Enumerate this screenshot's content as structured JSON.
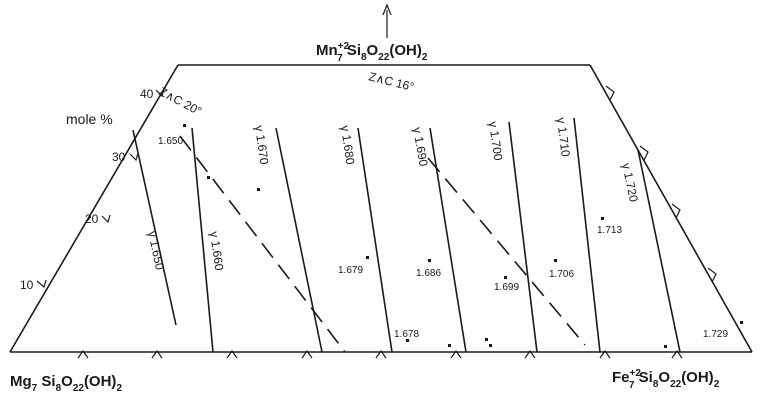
{
  "corners": {
    "top": {
      "base": "Mn",
      "sub1": "7",
      "sup1": "+2",
      "mid": " Si",
      "sub2": "8",
      "mid2": "O",
      "sub3": "22",
      "tail": "(OH)",
      "sub4": "2"
    },
    "left": {
      "base": "Mg",
      "sub1": "7",
      "mid": " Si",
      "sub2": "8",
      "mid2": "O",
      "sub3": "22",
      "tail": "(OH)",
      "sub4": "2"
    },
    "right": {
      "base": "Fe",
      "sub1": "7",
      "sup1": "+2",
      "mid": " Si",
      "sub2": "8",
      "mid2": "O",
      "sub3": "22",
      "tail": "(OH)",
      "sub4": "2"
    }
  },
  "axis": {
    "unit_label": "mole %",
    "ticks": [
      "10",
      "20",
      "30",
      "40"
    ]
  },
  "isolines": [
    "γ 1.650",
    "γ 1.660",
    "γ 1.670",
    "γ 1.680",
    "γ 1.690",
    "γ 1.700",
    "γ 1.710",
    "γ 1.720"
  ],
  "extinction_lines": [
    "Z∧C 20°",
    "Z∧C 16°"
  ],
  "points": [
    {
      "label": "1.650"
    },
    {
      "label": "1.679"
    },
    {
      "label": "1.686"
    },
    {
      "label": "1.699"
    },
    {
      "label": "1.706"
    },
    {
      "label": "1.713"
    },
    {
      "label": "1.729"
    },
    {
      "label": "1.678"
    },
    {
      "label": ""
    },
    {
      "label": ""
    },
    {
      "label": ""
    },
    {
      "label": ""
    },
    {
      "label": ""
    },
    {
      "label": ""
    }
  ]
}
